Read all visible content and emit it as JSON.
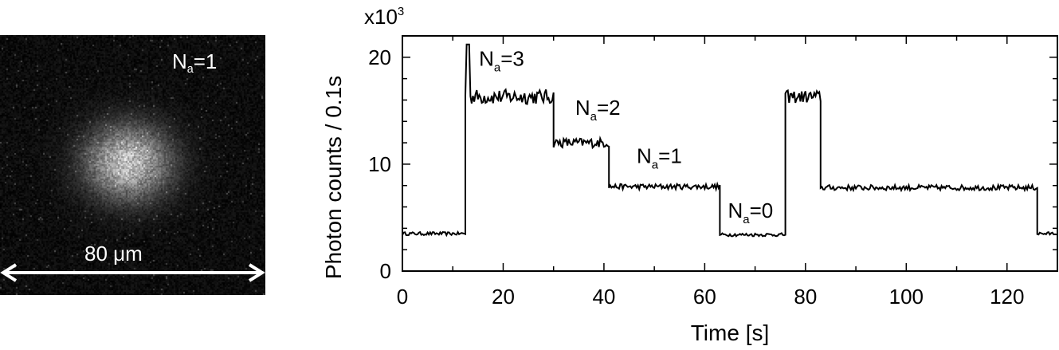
{
  "image_panel": {
    "label_main": "N",
    "label_sub": "a",
    "label_tail": "=1",
    "scale_text": "80 μm"
  },
  "chart_data": {
    "type": "line",
    "xlabel": "Time [s]",
    "ylabel": "Photon counts / 0.1s",
    "y_multiplier_base": "x10",
    "y_multiplier_exp": "3",
    "xlim": [
      0,
      130
    ],
    "ylim": [
      0,
      22
    ],
    "x_ticks": [
      0,
      20,
      40,
      60,
      80,
      100,
      120
    ],
    "y_ticks": [
      0,
      10,
      20
    ],
    "line_color": "#000000",
    "segments": [
      {
        "x_start": 0,
        "x_end": 12.5,
        "level": 3.5,
        "noise": 0.15
      },
      {
        "x_start": 12.5,
        "x_end": 30,
        "level": 16.3,
        "noise": 0.7,
        "spike_x": 13,
        "spike_y": 21.2
      },
      {
        "x_start": 30,
        "x_end": 41,
        "level": 12.0,
        "noise": 0.45
      },
      {
        "x_start": 41,
        "x_end": 63,
        "level": 7.9,
        "noise": 0.25
      },
      {
        "x_start": 63,
        "x_end": 76,
        "level": 3.4,
        "noise": 0.15
      },
      {
        "x_start": 76,
        "x_end": 83,
        "level": 16.3,
        "noise": 0.6
      },
      {
        "x_start": 83,
        "x_end": 126,
        "level": 7.8,
        "noise": 0.25
      },
      {
        "x_start": 126,
        "x_end": 130,
        "level": 3.5,
        "noise": 0.15
      }
    ],
    "annotations": [
      {
        "id": "na3",
        "main": "N",
        "sub": "a",
        "tail": "=3",
        "x": 15.2,
        "y": 19.2
      },
      {
        "id": "na2",
        "main": "N",
        "sub": "a",
        "tail": "=2",
        "x": 34.3,
        "y": 14.6
      },
      {
        "id": "na1",
        "main": "N",
        "sub": "a",
        "tail": "=1",
        "x": 46.5,
        "y": 10.1
      },
      {
        "id": "na0",
        "main": "N",
        "sub": "a",
        "tail": "=0",
        "x": 64.6,
        "y": 5.0
      }
    ]
  }
}
